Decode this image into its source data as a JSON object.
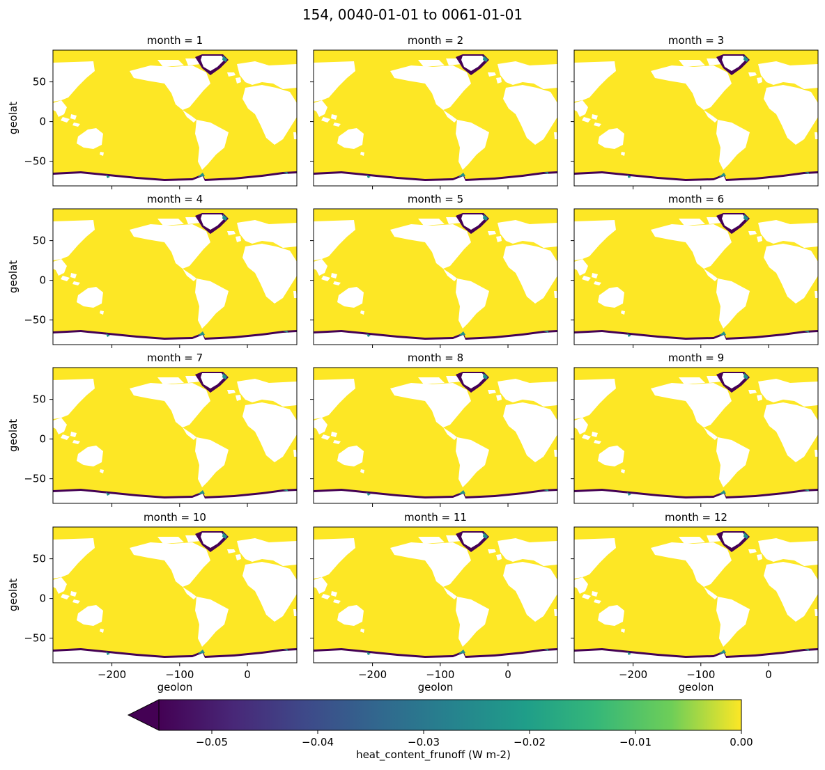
{
  "chart_data": {
    "type": "heatmap",
    "title": "154, 0040-01-01 to 0061-01-01",
    "layout": "4x3 facet grid",
    "facet_var": "month",
    "facets": [
      {
        "month": 1,
        "label": "month = 1"
      },
      {
        "month": 2,
        "label": "month = 2"
      },
      {
        "month": 3,
        "label": "month = 3"
      },
      {
        "month": 4,
        "label": "month = 4"
      },
      {
        "month": 5,
        "label": "month = 5"
      },
      {
        "month": 6,
        "label": "month = 6"
      },
      {
        "month": 7,
        "label": "month = 7"
      },
      {
        "month": 8,
        "label": "month = 8"
      },
      {
        "month": 9,
        "label": "month = 9"
      },
      {
        "month": 10,
        "label": "month = 10"
      },
      {
        "month": 11,
        "label": "month = 11"
      },
      {
        "month": 12,
        "label": "month = 12"
      }
    ],
    "xlabel": "geolon",
    "ylabel": "geolat",
    "xlim": [
      -287,
      73
    ],
    "ylim": [
      -81,
      90
    ],
    "xticks": [
      -200,
      -100,
      0
    ],
    "xtick_labels": [
      "−200",
      "−100",
      "0"
    ],
    "yticks": [
      50,
      0,
      -50
    ],
    "ytick_labels": [
      "50",
      "0",
      "−50"
    ],
    "colorbar": {
      "label": "heat_content_frunoff (W m-2)",
      "orientation": "horizontal",
      "placement": "bottom",
      "colormap": "viridis",
      "vmin": -0.055,
      "vmax": 0.0,
      "extend": "min",
      "ticks": [
        -0.05,
        -0.04,
        -0.03,
        -0.02,
        -0.01,
        0.0
      ],
      "tick_labels": [
        "−0.05",
        "−0.04",
        "−0.03",
        "−0.02",
        "−0.01",
        "0.00"
      ]
    },
    "field_description": {
      "ocean_value": 0.0,
      "coastal_min_value": -0.055
    },
    "colors": {
      "ocean": "#fde725",
      "land": "#ffffff",
      "coastal_low": "#440154",
      "coastal_mid": "#21918c",
      "coastal_high": "#5ec962"
    }
  }
}
